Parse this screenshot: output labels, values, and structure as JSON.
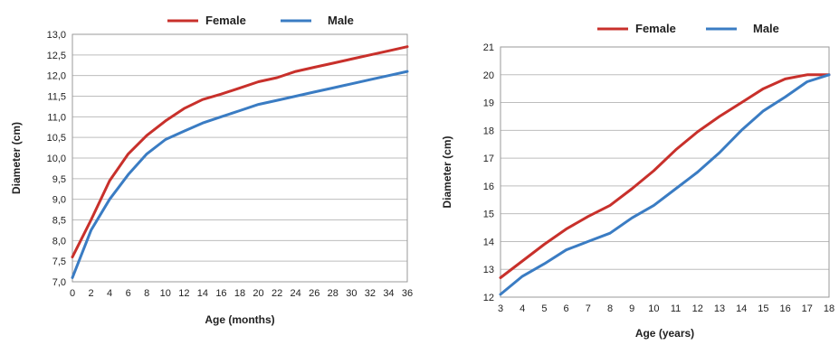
{
  "colors": {
    "female": "#c8302b",
    "male": "#3a7cc3"
  },
  "chart_data": [
    {
      "type": "line",
      "title": "",
      "xlabel": "Age (months)",
      "ylabel": "Diameter (cm)",
      "xlim": [
        0,
        36
      ],
      "ylim": [
        7.0,
        13.0
      ],
      "x_ticks": [
        "0",
        "2",
        "4",
        "6",
        "8",
        "10",
        "12",
        "14",
        "16",
        "18",
        "20",
        "22",
        "24",
        "26",
        "28",
        "30",
        "32",
        "34",
        "36"
      ],
      "y_ticks": [
        "7,0",
        "7,5",
        "8,0",
        "8,5",
        "9,0",
        "9,5",
        "10,0",
        "10,5",
        "11,0",
        "11,5",
        "12,0",
        "12,5",
        "13,0"
      ],
      "grid": true,
      "legend_position": "top",
      "x": [
        0,
        2,
        4,
        6,
        8,
        10,
        12,
        14,
        16,
        18,
        20,
        22,
        24,
        26,
        28,
        30,
        32,
        34,
        36
      ],
      "series": [
        {
          "name": "Female",
          "color": "#c8302b",
          "values": [
            7.6,
            8.5,
            9.45,
            10.1,
            10.55,
            10.9,
            11.2,
            11.42,
            11.55,
            11.7,
            11.85,
            11.95,
            12.1,
            12.2,
            12.3,
            12.4,
            12.5,
            12.6,
            12.7
          ]
        },
        {
          "name": "Male",
          "color": "#3a7cc3",
          "values": [
            7.1,
            8.25,
            9.0,
            9.6,
            10.1,
            10.45,
            10.65,
            10.85,
            11.0,
            11.15,
            11.3,
            11.4,
            11.5,
            11.6,
            11.7,
            11.8,
            11.9,
            12.0,
            12.1
          ]
        }
      ]
    },
    {
      "type": "line",
      "title": "",
      "xlabel": "Age (years)",
      "ylabel": "Diameter (cm)",
      "xlim": [
        3,
        18
      ],
      "ylim": [
        12,
        21
      ],
      "x_ticks": [
        "3",
        "4",
        "5",
        "6",
        "7",
        "8",
        "9",
        "10",
        "11",
        "12",
        "13",
        "14",
        "15",
        "16",
        "17",
        "18"
      ],
      "y_ticks": [
        "12",
        "13",
        "14",
        "15",
        "16",
        "17",
        "18",
        "19",
        "20",
        "21"
      ],
      "grid": true,
      "legend_position": "top",
      "x": [
        3,
        4,
        5,
        6,
        7,
        8,
        9,
        10,
        11,
        12,
        13,
        14,
        15,
        16,
        17,
        18
      ],
      "series": [
        {
          "name": "Female",
          "color": "#c8302b",
          "values": [
            12.7,
            13.3,
            13.9,
            14.45,
            14.9,
            15.3,
            15.9,
            16.55,
            17.3,
            17.95,
            18.5,
            19.0,
            19.5,
            19.85,
            20.0,
            20.0
          ]
        },
        {
          "name": "Male",
          "color": "#3a7cc3",
          "values": [
            12.1,
            12.75,
            13.2,
            13.7,
            14.0,
            14.3,
            14.85,
            15.3,
            15.9,
            16.5,
            17.2,
            18.0,
            18.7,
            19.2,
            19.75,
            20.0
          ]
        }
      ]
    }
  ]
}
